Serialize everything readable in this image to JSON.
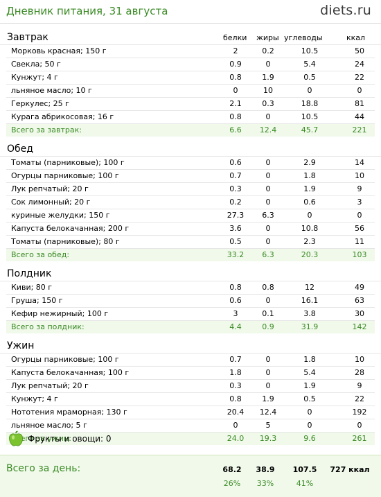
{
  "header": {
    "title": "Дневник питания, 31 августа",
    "logo_name": "diets",
    "logo_tld": ".ru"
  },
  "columns": [
    "белки",
    "жиры",
    "углеводы",
    "ккал"
  ],
  "meals": [
    {
      "name": "Завтрак",
      "items": [
        [
          "Морковь красная; 150 г",
          "2",
          "0.2",
          "10.5",
          "50"
        ],
        [
          "Свекла; 50 г",
          "0.9",
          "0",
          "5.4",
          "24"
        ],
        [
          "Кунжут; 4 г",
          "0.8",
          "1.9",
          "0.5",
          "22"
        ],
        [
          "льняное масло; 10 г",
          "0",
          "10",
          "0",
          "0"
        ],
        [
          "Геркулес; 25 г",
          "2.1",
          "0.3",
          "18.8",
          "81"
        ],
        [
          "Курага абрикосовая; 16 г",
          "0.8",
          "0",
          "10.5",
          "44"
        ]
      ],
      "total": [
        "Всего за завтрак:",
        "6.6",
        "12.4",
        "45.7",
        "221"
      ]
    },
    {
      "name": "Обед",
      "items": [
        [
          "Томаты (парниковые); 100 г",
          "0.6",
          "0",
          "2.9",
          "14"
        ],
        [
          "Огурцы парниковые; 100 г",
          "0.7",
          "0",
          "1.8",
          "10"
        ],
        [
          "Лук репчатый; 20 г",
          "0.3",
          "0",
          "1.9",
          "9"
        ],
        [
          "Сок лимонный; 20 г",
          "0.2",
          "0",
          "0.6",
          "3"
        ],
        [
          "куриные желудки; 150 г",
          "27.3",
          "6.3",
          "0",
          "0"
        ],
        [
          "Капуста белокачанная; 200 г",
          "3.6",
          "0",
          "10.8",
          "56"
        ],
        [
          "Томаты (парниковые); 80 г",
          "0.5",
          "0",
          "2.3",
          "11"
        ]
      ],
      "total": [
        "Всего за обед:",
        "33.2",
        "6.3",
        "20.3",
        "103"
      ]
    },
    {
      "name": "Полдник",
      "items": [
        [
          "Киви; 80 г",
          "0.8",
          "0.8",
          "12",
          "49"
        ],
        [
          "Груша; 150 г",
          "0.6",
          "0",
          "16.1",
          "63"
        ],
        [
          "Кефир нежирный; 100 г",
          "3",
          "0.1",
          "3.8",
          "30"
        ]
      ],
      "total": [
        "Всего за полдник:",
        "4.4",
        "0.9",
        "31.9",
        "142"
      ]
    },
    {
      "name": "Ужин",
      "items": [
        [
          "Огурцы парниковые; 100 г",
          "0.7",
          "0",
          "1.8",
          "10"
        ],
        [
          "Капуста белокачанная; 100 г",
          "1.8",
          "0",
          "5.4",
          "28"
        ],
        [
          "Лук репчатый; 20 г",
          "0.3",
          "0",
          "1.9",
          "9"
        ],
        [
          "Кунжут; 4 г",
          "0.8",
          "1.9",
          "0.5",
          "22"
        ],
        [
          "Нототения мраморная; 130 г",
          "20.4",
          "12.4",
          "0",
          "192"
        ],
        [
          "льняное масло; 5 г",
          "0",
          "5",
          "0",
          "0"
        ]
      ],
      "total": [
        "Всего за ужин:",
        "24.0",
        "19.3",
        "9.6",
        "261"
      ]
    }
  ],
  "fruit": {
    "label": "Фрукты и овощи: 0",
    "icon": "apple-icon"
  },
  "day": {
    "label": "Всего за день:",
    "values": [
      "68.2",
      "38.9",
      "107.5",
      "727 ккал"
    ],
    "percents": [
      "26%",
      "33%",
      "41%"
    ]
  },
  "colors": {
    "accent": "#3a8a24",
    "total_bg": "#f0f9ea",
    "apple": "#6fbf2a"
  }
}
